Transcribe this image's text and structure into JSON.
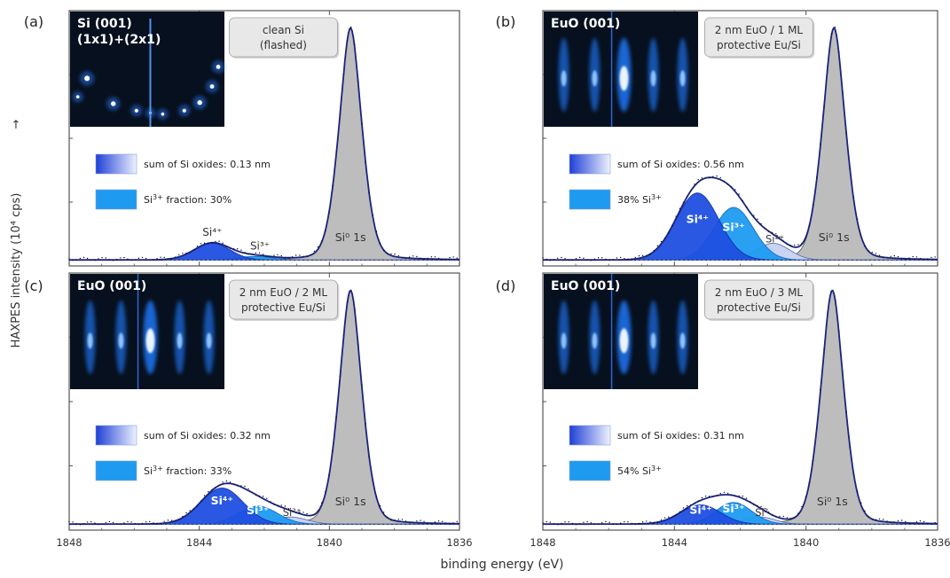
{
  "figure": {
    "ylabel": "HAXPES intensity (10⁴ cps)",
    "ylabel_arrow": "→",
    "xlabel": "binding energy (eV)"
  },
  "colors": {
    "si4": "#1f4fe0",
    "si3": "#1e9bf0",
    "si2": "#c9d3f2",
    "si0": "#bdbdbd",
    "envelope": "#1a237e",
    "axis": "#555555",
    "rheed_bg": "#07101e",
    "rheed_spot": "#9fd0ff"
  },
  "chart_data": [
    {
      "type": "line",
      "panel_label": "(a)",
      "rheed_title_1": "Si (001)",
      "rheed_title_2": "(1x1)+(2x1)",
      "rheed_kind": "spots",
      "condition_1": "clean Si",
      "condition_2": "(flashed)",
      "legend_oxide": "sum of Si oxides: 0.13 nm",
      "legend_fraction_pre": "Si",
      "legend_fraction_sup": "3+",
      "legend_fraction_post": " fraction: 30%",
      "peak_labels": {
        "si4": "Si⁴⁺",
        "si3": "Si³⁺",
        "si2": "",
        "si0": "Si⁰ 1s"
      },
      "peak_labels_inside": false,
      "xlim": [
        1848,
        1836
      ],
      "x_ticks": [
        1848,
        1844,
        1840,
        1836
      ],
      "x_tick_labels_shown": false,
      "ylim": [
        0,
        1
      ],
      "components": {
        "si4": {
          "center": 1843.6,
          "sigma": 0.55,
          "height": 0.07
        },
        "si3": {
          "center": 1842.3,
          "sigma": 0.55,
          "height": 0.015
        },
        "si2": {
          "center": 1841.4,
          "sigma": 0.5,
          "height": 0.0
        },
        "si0": {
          "center": 1839.35,
          "sigma": 0.38,
          "gamma": 0.3,
          "height": 0.97
        }
      }
    },
    {
      "type": "line",
      "panel_label": "(b)",
      "rheed_title_1": "EuO (001)",
      "rheed_title_2": "",
      "rheed_kind": "streaks",
      "condition_1": "2 nm EuO / 1 ML",
      "condition_2": "protective Eu/Si",
      "legend_oxide": "sum of Si oxides: 0.56 nm",
      "legend_fraction_pre": "38% Si",
      "legend_fraction_sup": "3+",
      "legend_fraction_post": "",
      "peak_labels": {
        "si4": "Si⁴⁺",
        "si3": "Si³⁺",
        "si2": "Si²⁺",
        "si0": "Si⁰ 1s"
      },
      "peak_labels_inside": true,
      "xlim": [
        1848,
        1836
      ],
      "x_ticks": [
        1848,
        1844,
        1840,
        1836
      ],
      "x_tick_labels_shown": false,
      "ylim": [
        0,
        1
      ],
      "components": {
        "si4": {
          "center": 1843.3,
          "sigma": 0.65,
          "height": 0.28
        },
        "si3": {
          "center": 1842.2,
          "sigma": 0.6,
          "height": 0.22
        },
        "si2": {
          "center": 1841.0,
          "sigma": 0.5,
          "height": 0.07
        },
        "si0": {
          "center": 1839.15,
          "sigma": 0.38,
          "gamma": 0.3,
          "height": 0.97
        }
      }
    },
    {
      "type": "line",
      "panel_label": "(c)",
      "rheed_title_1": "EuO (001)",
      "rheed_title_2": "",
      "rheed_kind": "streaks",
      "condition_1": "2 nm EuO / 2 ML",
      "condition_2": "protective Eu/Si",
      "legend_oxide": "sum of Si oxides: 0.32 nm",
      "legend_fraction_pre": "Si",
      "legend_fraction_sup": "3+",
      "legend_fraction_post": " fraction: 33%",
      "peak_labels": {
        "si4": "Si⁴⁺",
        "si3": "Si³⁺",
        "si2": "Si²⁺",
        "si0": "Si⁰ 1s"
      },
      "peak_labels_inside": true,
      "xlim": [
        1848,
        1836
      ],
      "x_ticks": [
        1848,
        1844,
        1840,
        1836
      ],
      "x_tick_labels_shown": true,
      "ylim": [
        0,
        1
      ],
      "components": {
        "si4": {
          "center": 1843.3,
          "sigma": 0.65,
          "height": 0.15
        },
        "si3": {
          "center": 1842.2,
          "sigma": 0.6,
          "height": 0.075
        },
        "si2": {
          "center": 1841.2,
          "sigma": 0.5,
          "height": 0.03
        },
        "si0": {
          "center": 1839.35,
          "sigma": 0.38,
          "gamma": 0.3,
          "height": 0.97
        }
      }
    },
    {
      "type": "line",
      "panel_label": "(d)",
      "rheed_title_1": "EuO (001)",
      "rheed_title_2": "",
      "rheed_kind": "streaks",
      "condition_1": "2 nm EuO / 3 ML",
      "condition_2": "protective Eu/Si",
      "legend_oxide": "sum of Si oxides: 0.31 nm",
      "legend_fraction_pre": "54% Si",
      "legend_fraction_sup": "3+",
      "legend_fraction_post": "",
      "peak_labels": {
        "si4": "Si⁴⁺",
        "si3": "Si³⁺",
        "si2": "Si²",
        "si0": "Si⁰ 1s"
      },
      "peak_labels_inside": true,
      "xlim": [
        1848,
        1836
      ],
      "x_ticks": [
        1848,
        1844,
        1840,
        1836
      ],
      "x_tick_labels_shown": true,
      "ylim": [
        0,
        1
      ],
      "components": {
        "si4": {
          "center": 1843.2,
          "sigma": 0.6,
          "height": 0.08
        },
        "si3": {
          "center": 1842.2,
          "sigma": 0.55,
          "height": 0.09
        },
        "si2": {
          "center": 1841.4,
          "sigma": 0.45,
          "height": 0.03
        },
        "si0": {
          "center": 1839.2,
          "sigma": 0.38,
          "gamma": 0.3,
          "height": 0.97
        }
      }
    }
  ]
}
